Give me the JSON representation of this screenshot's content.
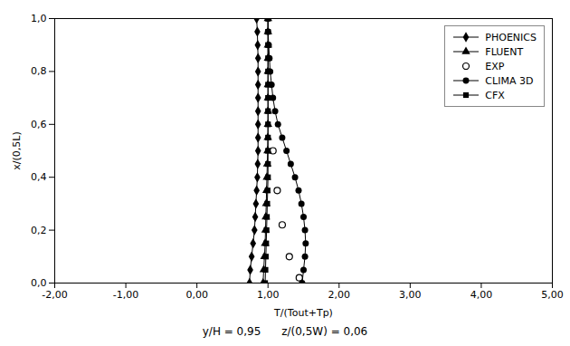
{
  "chart_data": {
    "type": "line",
    "xlabel": "T/(Tout+Tp)",
    "ylabel": "x/(0,5L)",
    "subtitle": "y/H = 0,95      z/(0,5W) = 0,06",
    "xlim": [
      -2.0,
      5.0
    ],
    "ylim": [
      0.0,
      1.0
    ],
    "xticks": [
      {
        "value": -2.0,
        "label": "-2,00"
      },
      {
        "value": -1.0,
        "label": "-1,00"
      },
      {
        "value": 0.0,
        "label": "0,00"
      },
      {
        "value": 1.0,
        "label": "1,00"
      },
      {
        "value": 2.0,
        "label": "2,00"
      },
      {
        "value": 3.0,
        "label": "3,00"
      },
      {
        "value": 4.0,
        "label": "4,00"
      },
      {
        "value": 5.0,
        "label": "5,00"
      }
    ],
    "yticks": [
      {
        "value": 0.0,
        "label": "0,0"
      },
      {
        "value": 0.2,
        "label": "0,2"
      },
      {
        "value": 0.4,
        "label": "0,4"
      },
      {
        "value": 0.6,
        "label": "0,6"
      },
      {
        "value": 0.8,
        "label": "0,8"
      },
      {
        "value": 1.0,
        "label": "1,0"
      }
    ],
    "grid": false,
    "legend": "upper right",
    "series": [
      {
        "name": "PHOENICS",
        "color": "#000000",
        "marker": "diamond",
        "line_style": "solid",
        "x": [
          0.74,
          0.75,
          0.77,
          0.79,
          0.81,
          0.82,
          0.83,
          0.84,
          0.85,
          0.855,
          0.86,
          0.86,
          0.86,
          0.86,
          0.86,
          0.86,
          0.86,
          0.86,
          0.855,
          0.85,
          0.84
        ],
        "values": [
          0.0,
          0.05,
          0.1,
          0.15,
          0.2,
          0.25,
          0.3,
          0.35,
          0.4,
          0.45,
          0.5,
          0.55,
          0.6,
          0.65,
          0.7,
          0.75,
          0.8,
          0.85,
          0.9,
          0.95,
          1.0
        ]
      },
      {
        "name": "FLUENT",
        "color": "#000000",
        "marker": "triangle",
        "line_style": "solid",
        "x": [
          0.93,
          0.94,
          0.95,
          0.96,
          0.965,
          0.97,
          0.975,
          0.98,
          0.985,
          0.99,
          0.995,
          0.998,
          1.0,
          1.0,
          1.0,
          1.0,
          1.0,
          1.0,
          1.0,
          1.0,
          1.0
        ],
        "values": [
          0.0,
          0.05,
          0.1,
          0.15,
          0.2,
          0.25,
          0.3,
          0.35,
          0.4,
          0.45,
          0.5,
          0.55,
          0.6,
          0.65,
          0.7,
          0.75,
          0.8,
          0.85,
          0.9,
          0.95,
          1.0
        ]
      },
      {
        "name": "EXP",
        "color": "#000000",
        "marker": "circle_open",
        "line_style": "none",
        "x": [
          1.44,
          1.3,
          1.2,
          1.13,
          1.07
        ],
        "values": [
          0.02,
          0.1,
          0.22,
          0.35,
          0.5
        ]
      },
      {
        "name": "CLIMA 3D",
        "color": "#000000",
        "marker": "circle",
        "line_style": "solid",
        "x": [
          1.48,
          1.5,
          1.52,
          1.53,
          1.52,
          1.5,
          1.47,
          1.43,
          1.38,
          1.32,
          1.26,
          1.2,
          1.14,
          1.1,
          1.07,
          1.05,
          1.03,
          1.02,
          1.01,
          1.0,
          1.0
        ],
        "values": [
          0.0,
          0.05,
          0.1,
          0.15,
          0.2,
          0.25,
          0.3,
          0.35,
          0.4,
          0.45,
          0.5,
          0.55,
          0.6,
          0.65,
          0.7,
          0.75,
          0.8,
          0.85,
          0.9,
          0.95,
          1.0
        ]
      },
      {
        "name": "CFX",
        "color": "#000000",
        "marker": "square",
        "line_style": "solid",
        "x": [
          0.96,
          0.965,
          0.97,
          0.975,
          0.98,
          0.985,
          0.99,
          0.995,
          1.0,
          1.0,
          1.0,
          1.0,
          1.0,
          1.0,
          1.0,
          1.0,
          1.0,
          1.0,
          1.0,
          1.0,
          1.0
        ],
        "values": [
          0.0,
          0.05,
          0.1,
          0.15,
          0.2,
          0.25,
          0.3,
          0.35,
          0.4,
          0.45,
          0.5,
          0.55,
          0.6,
          0.65,
          0.7,
          0.75,
          0.8,
          0.85,
          0.9,
          0.95,
          1.0
        ]
      }
    ]
  }
}
